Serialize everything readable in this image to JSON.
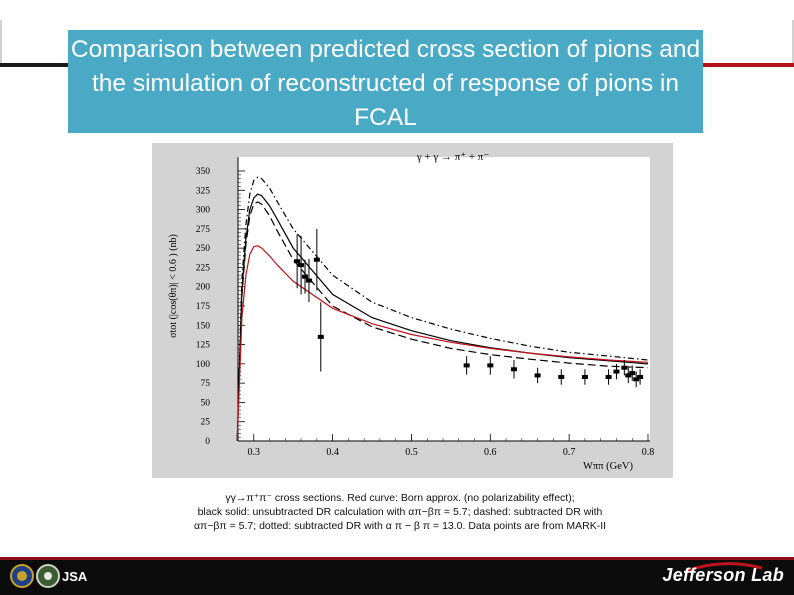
{
  "slide": {
    "title": "Comparison between predicted cross section of pions and the simulation of reconstructed of response of pions in FCAL",
    "caption_lines": [
      "γγ→π⁺π⁻ cross sections. Red curve: Born approx. (no polarizability effect);",
      "black solid: unsubtracted DR calculation with απ−βπ = 5.7; dashed: subtracted DR with",
      "απ−βπ = 5.7; dotted: subtracted DR with α π − β π = 13.0. Data points are from MARK-II"
    ],
    "footer_logo_left": "JSA",
    "footer_logo_right": "Jefferson Lab"
  },
  "chart_data": {
    "type": "line",
    "title": "γ + γ → π⁺ + π⁻",
    "xlabel": "Wππ  (GeV)",
    "ylabel": "σtot (|cos(θπ)| < 0.6 )  (nb)",
    "xlim": [
      0.28,
      0.8
    ],
    "ylim": [
      0,
      350
    ],
    "x_ticks": [
      0.3,
      0.4,
      0.5,
      0.6,
      0.7,
      0.8
    ],
    "x_tick_labels": [
      "0.3",
      "0.4",
      "0.5",
      "0.6",
      "0.7",
      "0.8"
    ],
    "y_ticks": [
      0,
      25,
      50,
      75,
      100,
      125,
      150,
      175,
      200,
      225,
      250,
      275,
      300,
      325,
      350
    ],
    "y_tick_labels": [
      "0",
      "25",
      "50",
      "75",
      "100",
      "125",
      "150",
      "175",
      "200",
      "225",
      "250",
      "275",
      "300",
      "325",
      "350"
    ],
    "grid": false,
    "series": [
      {
        "style": "dash-dot",
        "color": "#000000",
        "x": [
          0.279,
          0.285,
          0.29,
          0.295,
          0.3,
          0.305,
          0.31,
          0.32,
          0.33,
          0.35,
          0.4,
          0.45,
          0.5,
          0.55,
          0.6,
          0.65,
          0.7,
          0.75,
          0.8
        ],
        "y": [
          0,
          210,
          280,
          320,
          338,
          342,
          340,
          328,
          310,
          275,
          215,
          180,
          160,
          145,
          133,
          123,
          115,
          110,
          105
        ]
      },
      {
        "style": "solid",
        "color": "#000000",
        "x": [
          0.279,
          0.285,
          0.29,
          0.295,
          0.3,
          0.305,
          0.31,
          0.32,
          0.33,
          0.35,
          0.4,
          0.45,
          0.5,
          0.55,
          0.6,
          0.65,
          0.7,
          0.75,
          0.8
        ],
        "y": [
          0,
          195,
          262,
          300,
          315,
          320,
          318,
          305,
          287,
          250,
          190,
          160,
          143,
          130,
          121,
          114,
          108,
          104,
          100
        ]
      },
      {
        "style": "dashed",
        "color": "#000000",
        "x": [
          0.279,
          0.285,
          0.29,
          0.295,
          0.3,
          0.305,
          0.31,
          0.32,
          0.33,
          0.35,
          0.4,
          0.45,
          0.5,
          0.55,
          0.6,
          0.65,
          0.7,
          0.75,
          0.8
        ],
        "y": [
          0,
          188,
          255,
          292,
          307,
          310,
          307,
          292,
          272,
          235,
          175,
          148,
          132,
          120,
          112,
          106,
          101,
          97,
          95
        ]
      },
      {
        "style": "solid",
        "color": "#c0141c",
        "x": [
          0.279,
          0.285,
          0.29,
          0.295,
          0.3,
          0.305,
          0.31,
          0.32,
          0.33,
          0.35,
          0.4,
          0.45,
          0.5,
          0.55,
          0.6,
          0.65,
          0.7,
          0.75,
          0.8
        ],
        "y": [
          0,
          160,
          215,
          242,
          252,
          253,
          250,
          240,
          228,
          207,
          172,
          152,
          138,
          128,
          120,
          114,
          109,
          105,
          102
        ]
      }
    ],
    "points": {
      "x": [
        0.355,
        0.36,
        0.365,
        0.37,
        0.38,
        0.385,
        0.57,
        0.6,
        0.63,
        0.66,
        0.69,
        0.72,
        0.75,
        0.76,
        0.77,
        0.775,
        0.78,
        0.785,
        0.79
      ],
      "y": [
        233,
        228,
        213,
        208,
        235,
        135,
        98,
        98,
        93,
        85,
        83,
        83,
        83,
        90,
        95,
        85,
        88,
        80,
        83
      ],
      "err": [
        35,
        38,
        22,
        28,
        40,
        45,
        12,
        12,
        12,
        10,
        10,
        10,
        10,
        10,
        10,
        10,
        10,
        10,
        10
      ]
    }
  }
}
